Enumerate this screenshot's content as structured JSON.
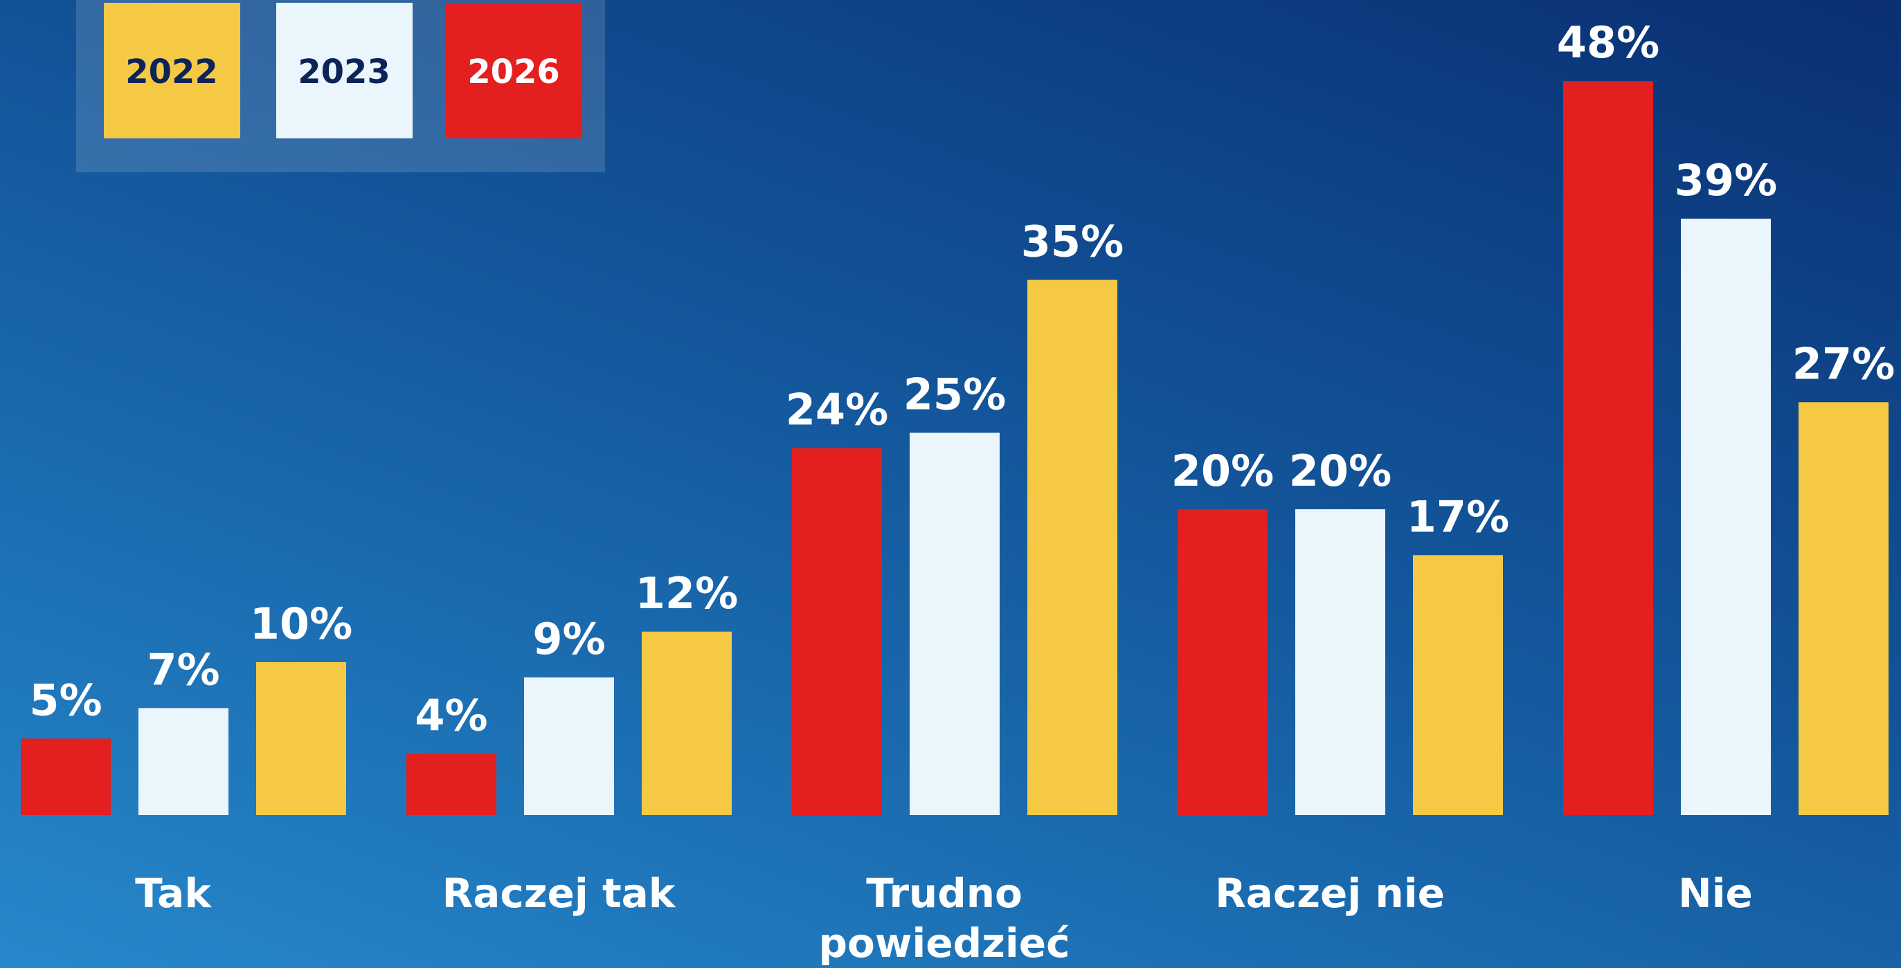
{
  "chart_data": {
    "type": "bar",
    "categories": [
      "Tak",
      "Raczej tak",
      "Trudno powiedzieć",
      "Raczej nie",
      "Nie"
    ],
    "series": [
      {
        "name": "2022",
        "color": "#f5c944",
        "values": [
          10,
          12,
          35,
          17,
          27
        ],
        "value_labels": [
          "10%",
          "12%",
          "35%",
          "17%",
          "27%"
        ]
      },
      {
        "name": "2023",
        "color": "#eaf5fc",
        "values": [
          7,
          9,
          25,
          20,
          39
        ],
        "value_labels": [
          "7%",
          "9%",
          "25%",
          "20%",
          "39%"
        ]
      },
      {
        "name": "2026",
        "color": "#e31f1f",
        "values": [
          5,
          4,
          24,
          20,
          48
        ],
        "value_labels": [
          "5%",
          "4%",
          "24%",
          "20%",
          "48%"
        ]
      }
    ],
    "legend": "top-left"
  }
}
